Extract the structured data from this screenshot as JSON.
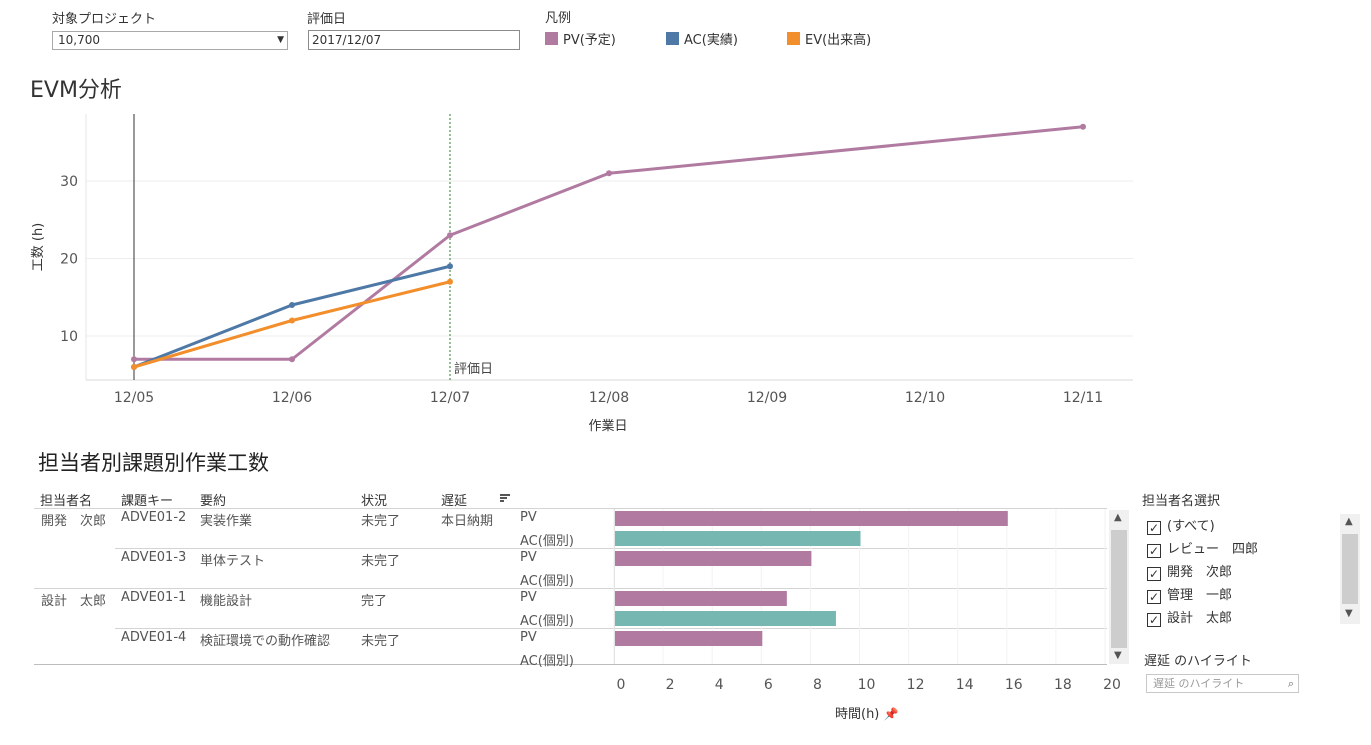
{
  "filters": {
    "project_label": "対象プロジェクト",
    "project_value": "10,700",
    "date_label": "評価日",
    "date_value": "2017/12/07"
  },
  "legend": {
    "title": "凡例",
    "items": [
      {
        "label": "PV(予定)",
        "color": "#b07aa1"
      },
      {
        "label": "AC(実績)",
        "color": "#4e79a7"
      },
      {
        "label": "EV(出来高)",
        "color": "#f28e2b"
      }
    ]
  },
  "evm": {
    "title": "EVM分析",
    "eval_marker_label": "評価日"
  },
  "chart_data": [
    {
      "type": "line",
      "title": "EVM分析",
      "xlabel": "作業日",
      "ylabel": "工数 (h)",
      "x": [
        "12/05",
        "12/06",
        "12/07",
        "12/08",
        "12/09",
        "12/10",
        "12/11"
      ],
      "y_ticks": [
        10,
        20,
        30
      ],
      "ylim": [
        4.5,
        39
      ],
      "grid": true,
      "series": [
        {
          "name": "PV(予定)",
          "color": "#b07aa1",
          "points": [
            [
              "12/05",
              7
            ],
            [
              "12/06",
              7
            ],
            [
              "12/07",
              23
            ],
            [
              "12/08",
              31
            ],
            [
              "12/11",
              37
            ]
          ]
        },
        {
          "name": "AC(実績)",
          "color": "#4e79a7",
          "points": [
            [
              "12/05",
              6
            ],
            [
              "12/06",
              14
            ],
            [
              "12/07",
              19
            ]
          ]
        },
        {
          "name": "EV(出来高)",
          "color": "#f28e2b",
          "points": [
            [
              "12/05",
              6
            ],
            [
              "12/06",
              12
            ],
            [
              "12/07",
              17
            ]
          ]
        }
      ],
      "reference_line": {
        "x": "12/07",
        "label": "評価日"
      }
    },
    {
      "type": "bar",
      "title": "担当者別課題別作業工数",
      "xlabel": "時間(h)",
      "x_ticks": [
        0,
        2,
        4,
        6,
        8,
        10,
        12,
        14,
        16,
        18,
        20
      ],
      "xlim": [
        0,
        20
      ],
      "colors": {
        "PV": "#b07aa1",
        "AC(個別)": "#76b7b2"
      },
      "rows": [
        {
          "task": "ADVE01-2",
          "measure": "PV",
          "value": 16
        },
        {
          "task": "ADVE01-2",
          "measure": "AC(個別)",
          "value": 10
        },
        {
          "task": "ADVE01-3",
          "measure": "PV",
          "value": 8
        },
        {
          "task": "ADVE01-3",
          "measure": "AC(個別)",
          "value": 0
        },
        {
          "task": "ADVE01-1",
          "measure": "PV",
          "value": 7
        },
        {
          "task": "ADVE01-1",
          "measure": "AC(個別)",
          "value": 9
        },
        {
          "task": "ADVE01-4",
          "measure": "PV",
          "value": 6
        },
        {
          "task": "ADVE01-4",
          "measure": "AC(個別)",
          "value": 0
        }
      ]
    }
  ],
  "table": {
    "title": "担当者別課題別作業工数",
    "headers": {
      "assignee": "担当者名",
      "key": "課題キー",
      "summary": "要約",
      "status": "状況",
      "delay": "遅延"
    },
    "tasks": [
      {
        "assignee": "開発　次郎",
        "key": "ADVE01-2",
        "summary": "実装作業",
        "status": "未完了",
        "delay": "本日納期"
      },
      {
        "assignee": "",
        "key": "ADVE01-3",
        "summary": "単体テスト",
        "status": "未完了",
        "delay": ""
      },
      {
        "assignee": "設計　太郎",
        "key": "ADVE01-1",
        "summary": "機能設計",
        "status": "完了",
        "delay": ""
      },
      {
        "assignee": "",
        "key": "ADVE01-4",
        "summary": "検証環境での動作確認",
        "status": "未完了",
        "delay": ""
      }
    ],
    "measure_labels": [
      "PV",
      "AC(個別)"
    ],
    "axis_label": "時間(h)"
  },
  "assignee_filter": {
    "title": "担当者名選択",
    "items": [
      "(すべて)",
      "レビュー　四郎",
      "開発　次郎",
      "管理　一郎",
      "設計　太郎"
    ]
  },
  "highlight": {
    "title": "遅延 のハイライト",
    "placeholder": "遅延 のハイライト"
  }
}
